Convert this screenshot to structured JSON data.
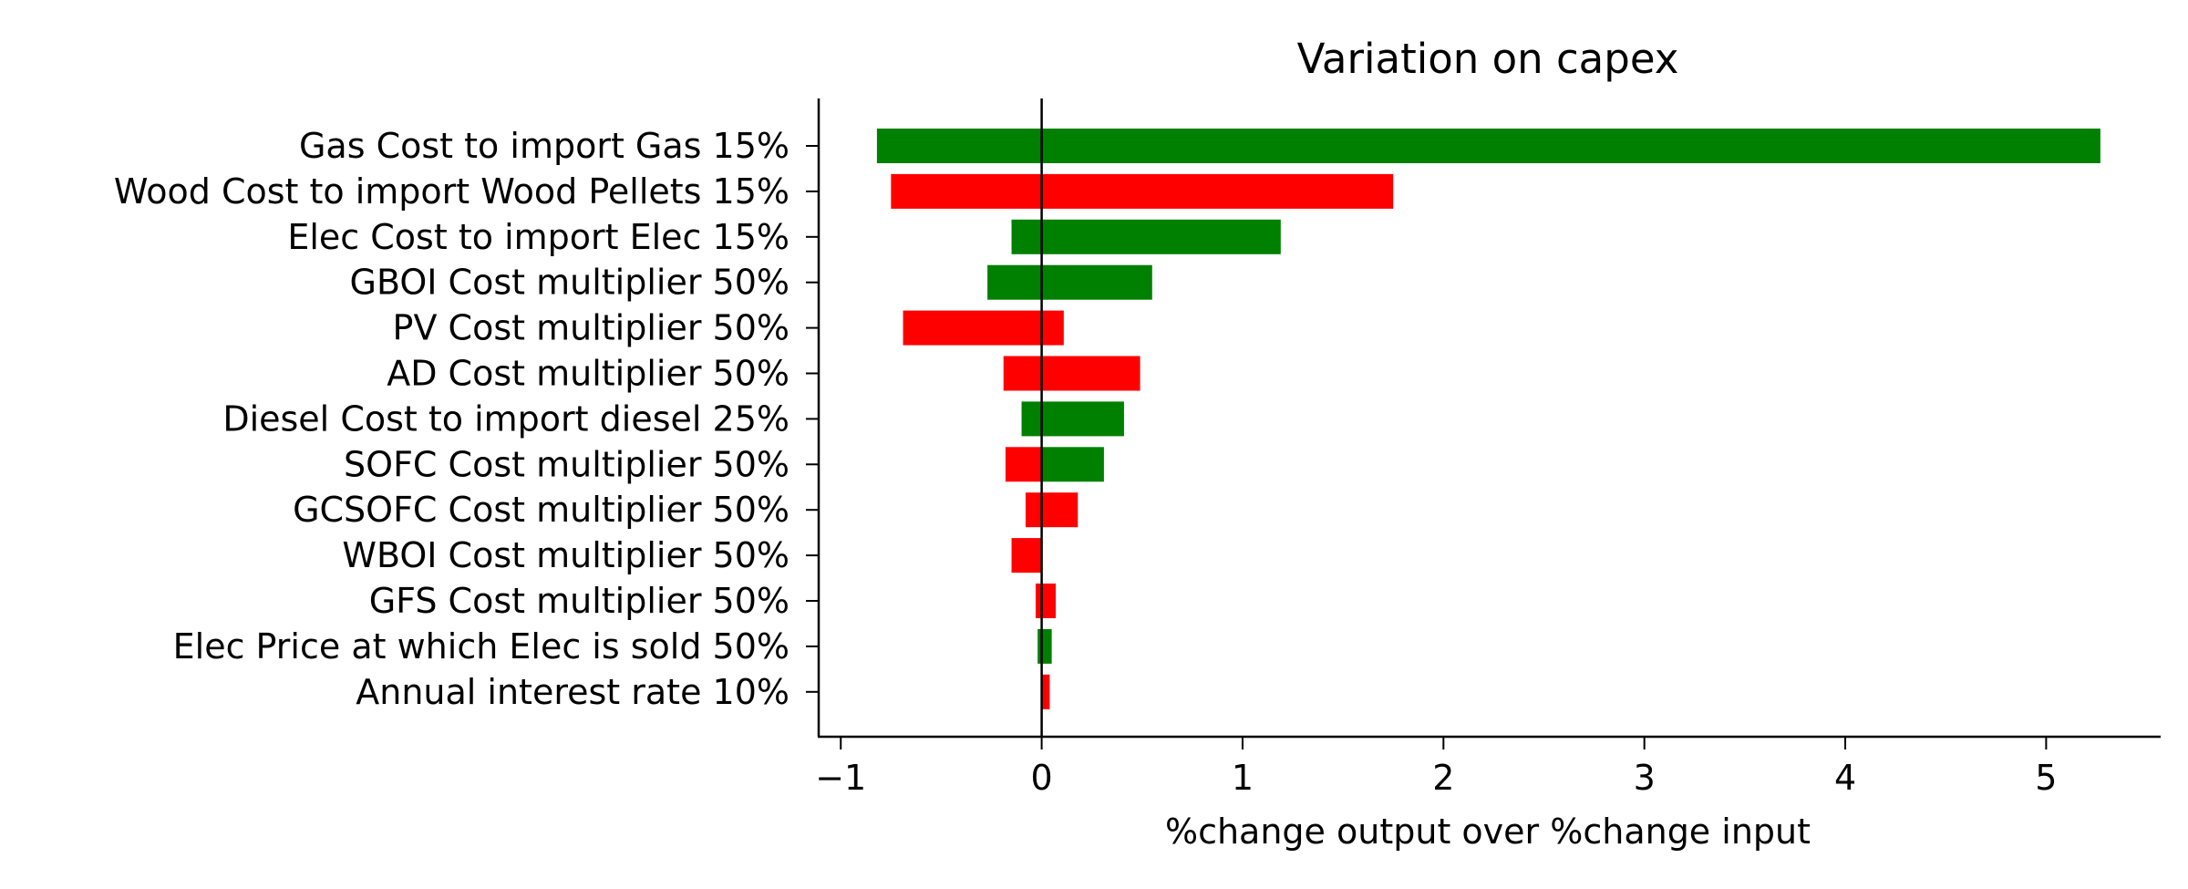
{
  "chart_data": {
    "type": "bar",
    "orientation": "horizontal",
    "title": "Variation on capex",
    "xlabel": "%change output over %change input",
    "ylabel": "",
    "xlim": [
      -1.11,
      5.57
    ],
    "xticks": [
      -1,
      0,
      1,
      2,
      3,
      4,
      5
    ],
    "xtick_labels": [
      "−1",
      "0",
      "1",
      "2",
      "3",
      "4",
      "5"
    ],
    "colors": {
      "positive": "#008000",
      "negative": "#ff0000",
      "zero_line": "#000000"
    },
    "categories": [
      "Gas Cost to import Gas 15%",
      "Wood Cost to import Wood Pellets 15%",
      "Elec Cost to import Elec  15%",
      "GBOI Cost multiplier 50%",
      "PV Cost multiplier 50%",
      "AD Cost multiplier 50%",
      "Diesel Cost to import diesel 25%",
      "SOFC Cost multiplier 50%",
      "GCSOFC Cost multiplier 50%",
      "WBOI Cost multiplier 50%",
      "GFS Cost multiplier 50%",
      "Elec Price at which Elec is sold 50%",
      "Annual interest rate 10%"
    ],
    "bars": [
      {
        "low": -0.82,
        "high": 5.27,
        "color": "green"
      },
      {
        "low": -0.75,
        "high": 1.75,
        "color": "red"
      },
      {
        "low": -0.15,
        "high": 1.19,
        "color": "green"
      },
      {
        "low": -0.27,
        "high": 0.55,
        "color": "green"
      },
      {
        "low": -0.69,
        "high": 0.11,
        "color": "red"
      },
      {
        "low": -0.19,
        "high": 0.49,
        "color": "red"
      },
      {
        "low": -0.1,
        "high": 0.41,
        "color": "green"
      },
      {
        "low": -0.18,
        "high": 0.0,
        "color": "red"
      },
      {
        "low": 0.0,
        "high": 0.31,
        "color": "green"
      },
      {
        "low": -0.08,
        "high": 0.18,
        "color": "red"
      },
      {
        "low": -0.15,
        "high": 0.0,
        "color": "red"
      },
      {
        "low": -0.03,
        "high": 0.07,
        "color": "red"
      },
      {
        "low": -0.02,
        "high": 0.05,
        "color": "green"
      },
      {
        "low": 0.0,
        "high": 0.04,
        "color": "red"
      }
    ],
    "bar_rows": [
      0,
      1,
      2,
      3,
      4,
      5,
      6,
      7,
      7,
      8,
      9,
      10,
      11,
      12
    ],
    "grid": false
  }
}
